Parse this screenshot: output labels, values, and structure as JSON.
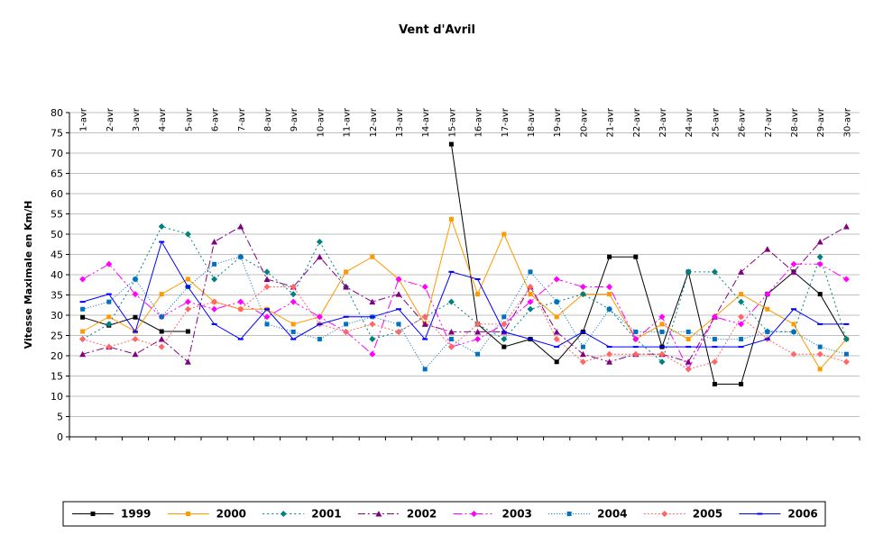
{
  "chart_data": {
    "type": "line",
    "title": "Vent d'Avril",
    "xlabel": "",
    "ylabel": "Vitesse Maximale en Km/H",
    "ylim": [
      0,
      80
    ],
    "yticks": [
      0,
      5,
      10,
      15,
      20,
      25,
      30,
      35,
      40,
      45,
      50,
      55,
      60,
      65,
      70,
      75,
      80
    ],
    "grid": true,
    "legend_position": "bottom",
    "categories": [
      "1-avr",
      "2-avr",
      "3-avr",
      "4-avr",
      "5-avr",
      "6-avr",
      "7-avr",
      "8-avr",
      "9-avr",
      "10-avr",
      "11-avr",
      "12-avr",
      "13-avr",
      "14-avr",
      "15-avr",
      "16-avr",
      "17-avr",
      "18-avr",
      "19-avr",
      "20-avr",
      "21-avr",
      "22-avr",
      "23-avr",
      "24-avr",
      "25-avr",
      "26-avr",
      "27-avr",
      "28-avr",
      "29-avr",
      "30-avr"
    ],
    "series": [
      {
        "name": "1999",
        "color": "#000000",
        "dash": "",
        "marker": "square",
        "values": [
          29.5,
          27.5,
          29.5,
          26,
          26,
          null,
          null,
          null,
          null,
          null,
          null,
          null,
          null,
          null,
          72.2,
          27.8,
          22.2,
          24.1,
          18.5,
          25.9,
          44.4,
          44.4,
          22.2,
          40.7,
          13,
          13,
          35.2,
          40.7,
          35.2,
          24.1
        ]
      },
      {
        "name": "2000",
        "color": "#FF9900",
        "dash": "",
        "marker": "square",
        "values": [
          26,
          29.6,
          26,
          35.2,
          38.9,
          33.3,
          31.5,
          31.5,
          27.8,
          29.6,
          40.7,
          44.4,
          38.9,
          27.8,
          53.7,
          35.2,
          50,
          35.2,
          29.6,
          35.2,
          35.2,
          24.1,
          27.8,
          24.1,
          29.6,
          35.2,
          31.5,
          27.8,
          16.7,
          24.1
        ]
      },
      {
        "name": "2001",
        "color": "#008080",
        "dash": "2,3",
        "marker": "diamond",
        "values": [
          24.1,
          27.8,
          38.9,
          51.9,
          50,
          38.9,
          44.4,
          40.7,
          35.2,
          48.1,
          37,
          24.1,
          25.9,
          29.6,
          33.3,
          27.8,
          24.1,
          31.5,
          33.3,
          35.2,
          31.5,
          24.1,
          18.5,
          40.7,
          40.7,
          33.3,
          26,
          25.9,
          44.4,
          24.1
        ]
      },
      {
        "name": "2002",
        "color": "#800080",
        "dash": "8,3,2,3",
        "marker": "triangle",
        "values": [
          20.4,
          22.2,
          20.4,
          24.1,
          18.5,
          48.1,
          51.9,
          38.9,
          37,
          44.4,
          37,
          33.3,
          35.2,
          27.8,
          25.9,
          25.9,
          25.9,
          37,
          25.9,
          20.4,
          18.5,
          20.4,
          20.4,
          18.5,
          29.6,
          40.7,
          46.3,
          40.7,
          48.1,
          51.9
        ]
      },
      {
        "name": "2003",
        "color": "#FF00FF",
        "dash": "10,3,2,3,2,3",
        "marker": "diamond",
        "values": [
          38.9,
          42.6,
          35.2,
          29.6,
          33.3,
          31.5,
          33.3,
          29.6,
          33.3,
          29.6,
          25.9,
          20.4,
          38.9,
          37,
          22.2,
          24.1,
          27.8,
          33.3,
          38.9,
          37,
          37,
          24.1,
          29.6,
          16.7,
          29.6,
          27.8,
          35.2,
          42.6,
          42.6,
          38.9
        ]
      },
      {
        "name": "2004",
        "color": "#0070C0",
        "dash": "1,2",
        "marker": "square",
        "values": [
          31.5,
          33.3,
          38.9,
          29.6,
          37,
          42.6,
          44.4,
          27.8,
          25.9,
          24.1,
          27.8,
          29.6,
          27.8,
          16.7,
          24.1,
          20.4,
          29.6,
          40.7,
          33.3,
          22.2,
          31.5,
          25.9,
          25.9,
          25.9,
          24.1,
          24.1,
          25.9,
          25.9,
          22.2,
          20.4
        ]
      },
      {
        "name": "2005",
        "color": "#FF6666",
        "dash": "2,2",
        "marker": "diamond",
        "values": [
          24.1,
          22.2,
          24.1,
          22.2,
          31.5,
          33.3,
          31.5,
          37,
          37,
          27.8,
          25.9,
          27.8,
          25.9,
          29.6,
          22.2,
          27.8,
          27.8,
          37,
          24.1,
          18.5,
          20.4,
          20.4,
          20.4,
          16.7,
          18.5,
          29.6,
          24.1,
          20.4,
          20.4,
          18.5
        ]
      },
      {
        "name": "2006",
        "color": "#0000FF",
        "dash": "",
        "marker": "dash",
        "values": [
          33.3,
          35.2,
          25.9,
          48.1,
          37,
          27.8,
          24.1,
          31.5,
          24.1,
          27.8,
          29.6,
          29.6,
          31.5,
          24.1,
          40.7,
          38.9,
          25.9,
          24.1,
          22.2,
          25.9,
          22.2,
          22.2,
          22.2,
          22.2,
          22.2,
          22.2,
          24.1,
          31.5,
          27.8,
          27.8
        ]
      }
    ]
  }
}
